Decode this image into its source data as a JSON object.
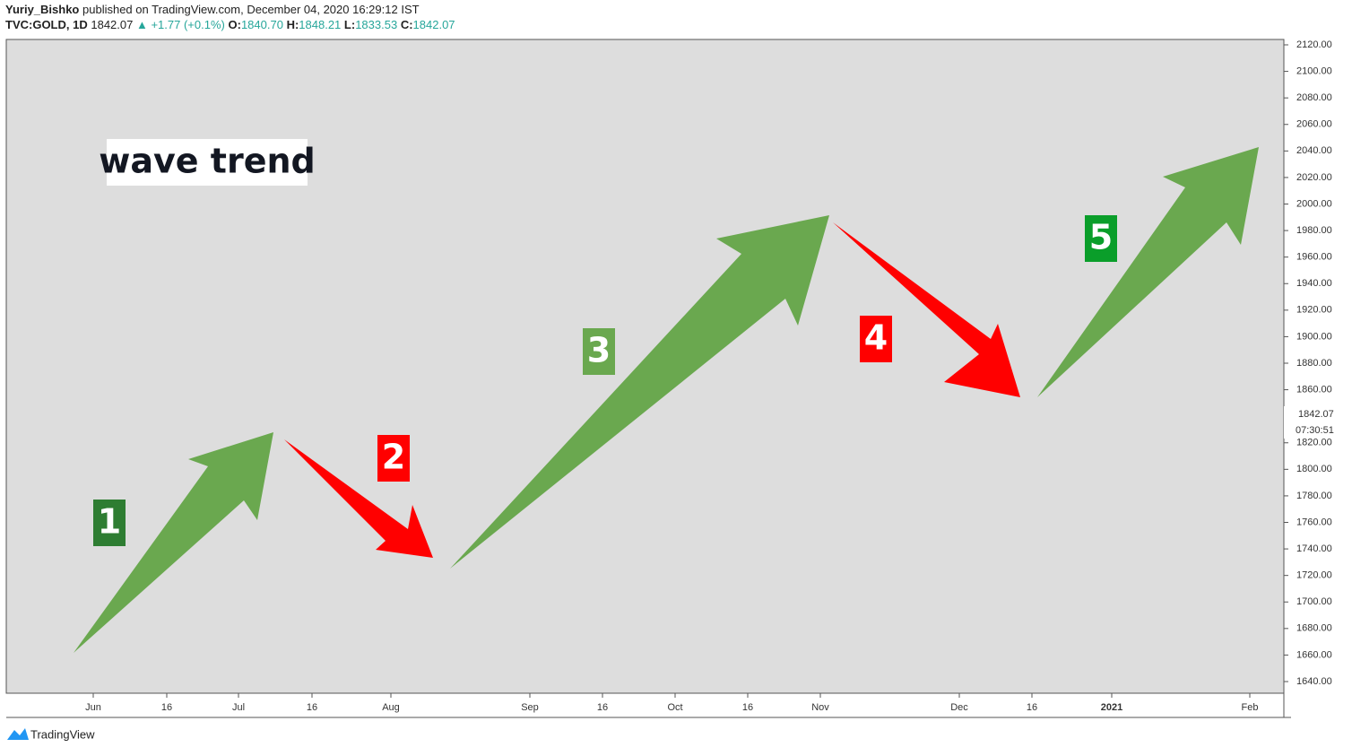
{
  "header": {
    "author": "Yuriy_Bishko",
    "published": "published on TradingView.com, December 04, 2020 16:29:12 IST",
    "symbol": "TVC:GOLD, 1D",
    "price": "1842.07",
    "change": "▲ +1.77 (+0.1%)",
    "open_label": "O:",
    "open": "1840.70",
    "high_label": "H:",
    "high": "1848.21",
    "low_label": "L:",
    "low": "1833.53",
    "close_label": "C:",
    "close": "1842.07"
  },
  "price_axis": {
    "ticks": [
      "2120.00",
      "2100.00",
      "2080.00",
      "2060.00",
      "2040.00",
      "2020.00",
      "2000.00",
      "1980.00",
      "1960.00",
      "1940.00",
      "1920.00",
      "1900.00",
      "1880.00",
      "1860.00",
      "1820.00",
      "1800.00",
      "1780.00",
      "1760.00",
      "1740.00",
      "1720.00",
      "1700.00",
      "1680.00",
      "1660.00",
      "1640.00"
    ],
    "last_price": "1842.07",
    "countdown": "07:30:51"
  },
  "time_axis": {
    "labels": [
      "Jun",
      "16",
      "Jul",
      "16",
      "Aug",
      "Sep",
      "16",
      "Oct",
      "16",
      "Nov",
      "Dec",
      "16",
      "2021",
      "Feb"
    ]
  },
  "annotations": {
    "title": "wave trend",
    "waves": [
      "1",
      "2",
      "3",
      "4",
      "5"
    ]
  },
  "footer": {
    "brand": "TradingView"
  }
}
